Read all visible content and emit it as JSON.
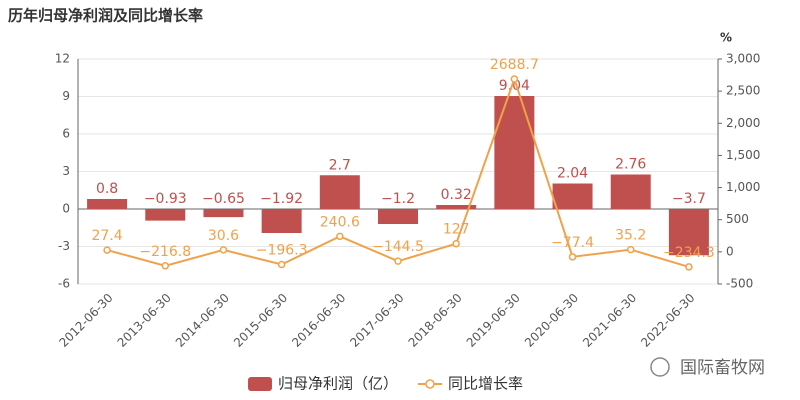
{
  "chart_data": {
    "type": "bar-line",
    "title": "历年归母净利润及同比增长率",
    "y2_unit": "%",
    "categories": [
      "2012-06-30",
      "2013-06-30",
      "2014-06-30",
      "2015-06-30",
      "2016-06-30",
      "2017-06-30",
      "2018-06-30",
      "2019-06-30",
      "2020-06-30",
      "2021-06-30",
      "2022-06-30"
    ],
    "series": [
      {
        "name": "归母净利润（亿）",
        "type": "bar",
        "color": "#c0504d",
        "values": [
          0.8,
          -0.93,
          -0.65,
          -1.92,
          2.7,
          -1.2,
          0.32,
          9.04,
          2.04,
          2.76,
          -3.7
        ],
        "value_labels": [
          "0.8",
          "−0.93",
          "−0.65",
          "−1.92",
          "2.7",
          "−1.2",
          "0.32",
          "9.04",
          "2.04",
          "2.76",
          "−3.7"
        ]
      },
      {
        "name": "同比增长率",
        "type": "line",
        "axis": "y2",
        "color": "#f0a24b",
        "values": [
          27.4,
          -216.8,
          30.6,
          -196.3,
          240.6,
          -144.5,
          127,
          2688.7,
          -77.4,
          35.2,
          -234.3
        ],
        "value_labels": [
          "27.4",
          "−216.8",
          "30.6",
          "−196.3",
          "240.6",
          "−144.5",
          "127",
          "2688.7",
          "−77.4",
          "35.2",
          "−234.3"
        ]
      }
    ],
    "ylim": [
      -6,
      12
    ],
    "yticks": [
      -6,
      -3,
      0,
      3,
      6,
      9,
      12
    ],
    "y2lim": [
      -500,
      3000
    ],
    "y2ticks": [
      -500,
      0,
      500,
      {
        "value": 1000,
        "label": "1,000"
      },
      {
        "value": 1500,
        "label": "1,500"
      },
      {
        "value": 2000,
        "label": "2,000"
      },
      {
        "value": 2500,
        "label": "2,500"
      },
      {
        "value": 3000,
        "label": "3,000"
      }
    ],
    "grid": true,
    "legend": "bottom",
    "watermark": "国际畜牧网"
  }
}
